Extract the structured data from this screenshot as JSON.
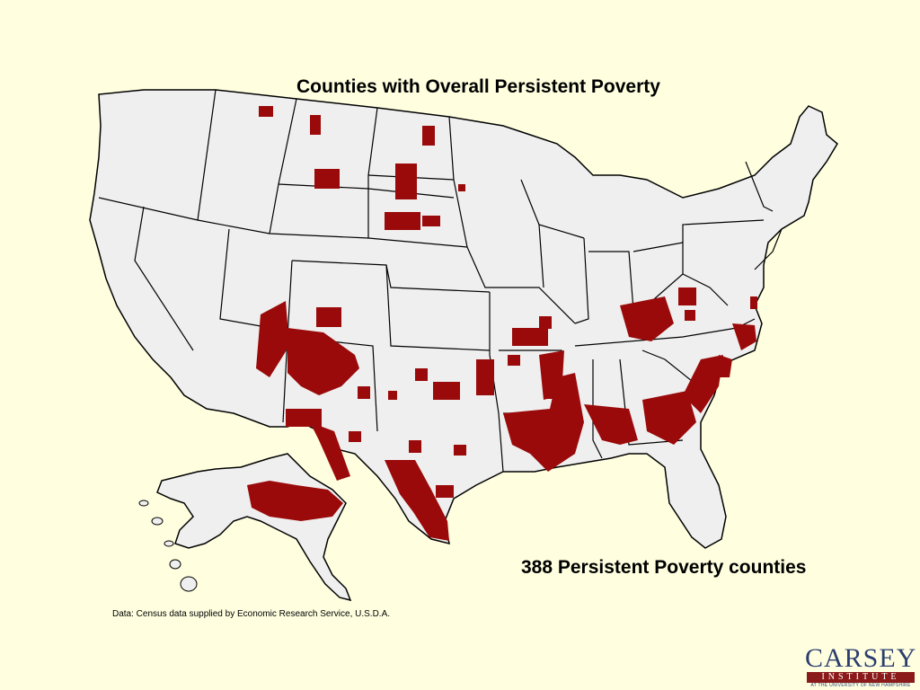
{
  "title": "Counties with Overall Persistent Poverty",
  "count_label": "388 Persistent Poverty counties",
  "source_note": "Data: Census data supplied by Economic Research Service, U.S.D.A.",
  "logo": {
    "name": "CARSEY",
    "bar": "INSTITUTE",
    "sub": "AT THE UNIVERSITY OF NEW HAMPSHIRE"
  },
  "colors": {
    "background": "#FFFFE0",
    "land": "#EFEFEF",
    "border": "#000000",
    "persistent_poverty": "#9B0A0A",
    "logo_blue": "#2C3E6E",
    "logo_red": "#8B1A1A"
  },
  "highlighted_regions": [
    "Northern Montana",
    "North Dakota reservations",
    "South Dakota reservations",
    "Four Corners / Navajo Nation",
    "New Mexico",
    "Southwest Texas border",
    "South Texas",
    "Oklahoma",
    "Arkansas / Mississippi Delta",
    "Louisiana",
    "Alabama Black Belt",
    "Georgia",
    "South Carolina",
    "North Carolina",
    "Central Appalachia",
    "Virginia",
    "Alaska interior"
  ]
}
